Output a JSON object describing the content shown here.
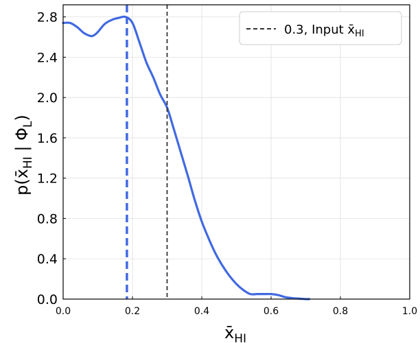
{
  "chart_data": {
    "type": "line",
    "xlabel": "x̄",
    "xlabel_sub": "HI",
    "ylabel_parts": {
      "open": "p(x̄",
      "sub1": "HI",
      "mid": " | Φ",
      "sub2": "L",
      "close": ")"
    },
    "xlim": [
      0.0,
      1.0
    ],
    "ylim": [
      0.0,
      2.92
    ],
    "xticks": [
      "0.0",
      "0.2",
      "0.4",
      "0.6",
      "0.8",
      "1.0"
    ],
    "yticks": [
      "0.0",
      "0.4",
      "0.8",
      "1.2",
      "1.6",
      "2.0",
      "2.4",
      "2.8"
    ],
    "grid": true,
    "legend_position": "top-right",
    "series": [
      {
        "color": "#4169e1",
        "x": [
          0.0,
          0.02,
          0.04,
          0.06,
          0.08,
          0.09,
          0.1,
          0.12,
          0.14,
          0.16,
          0.18,
          0.2,
          0.22,
          0.24,
          0.26,
          0.28,
          0.3,
          0.32,
          0.34,
          0.36,
          0.38,
          0.4,
          0.42,
          0.44,
          0.46,
          0.48,
          0.5,
          0.52,
          0.54,
          0.56,
          0.58,
          0.6,
          0.62,
          0.64,
          0.66,
          0.68,
          0.7,
          0.71
        ],
        "y": [
          2.74,
          2.74,
          2.7,
          2.64,
          2.61,
          2.62,
          2.65,
          2.73,
          2.77,
          2.79,
          2.8,
          2.74,
          2.55,
          2.35,
          2.2,
          2.03,
          1.9,
          1.68,
          1.45,
          1.22,
          0.98,
          0.77,
          0.6,
          0.45,
          0.33,
          0.23,
          0.15,
          0.09,
          0.05,
          0.05,
          0.05,
          0.05,
          0.04,
          0.02,
          0.01,
          0.005,
          0.0,
          0.0
        ]
      }
    ],
    "vlines": [
      {
        "x": 0.184,
        "color": "#4169e1",
        "style": "dashed-thick"
      },
      {
        "x": 0.3,
        "color": "#333333",
        "style": "dashed",
        "legend": {
          "value": "0.3",
          "text": ", Input x̄",
          "sub": "HI"
        }
      }
    ]
  }
}
